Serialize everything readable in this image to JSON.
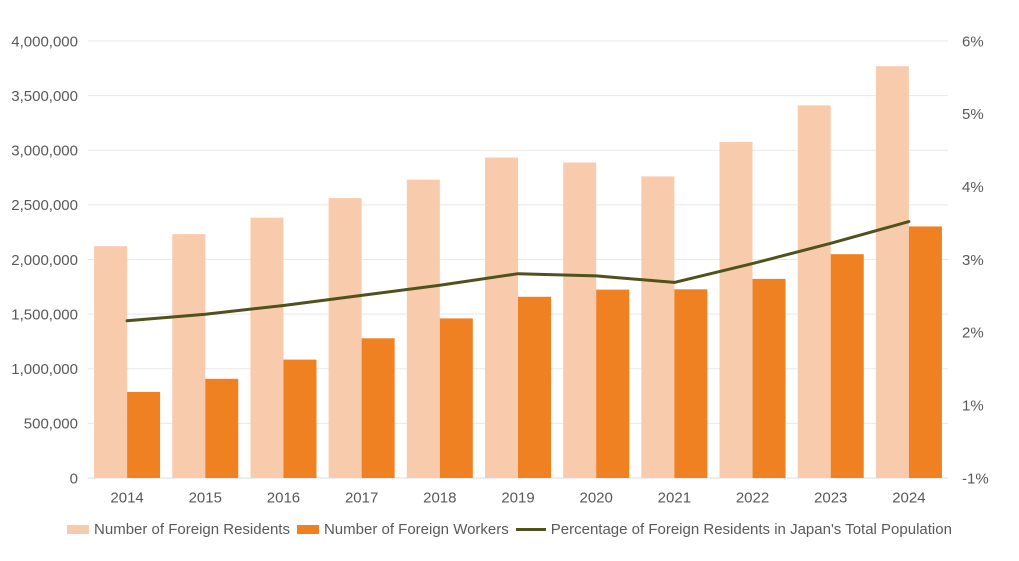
{
  "chart_data": {
    "type": "combo",
    "title": "",
    "categories": [
      "2014",
      "2015",
      "2016",
      "2017",
      "2018",
      "2019",
      "2020",
      "2021",
      "2022",
      "2023",
      "2024"
    ],
    "series": [
      {
        "name": "Number of Foreign Residents",
        "chart_type": "bar",
        "axis": "left",
        "color": "#F8CBAD",
        "values": [
          2121831,
          2232189,
          2382822,
          2561848,
          2731093,
          2933137,
          2887116,
          2760635,
          3075213,
          3410992,
          3768977
        ]
      },
      {
        "name": "Number of Foreign Workers",
        "chart_type": "bar",
        "axis": "left",
        "color": "#EF8122",
        "values": [
          787627,
          907896,
          1083769,
          1278670,
          1460463,
          1658804,
          1724328,
          1727221,
          1822725,
          2048675,
          2302587
        ]
      },
      {
        "name": "Percentage of Foreign Residents in Japan's Total Population",
        "chart_type": "line",
        "axis": "right",
        "color": "#4F521B",
        "values": [
          1.67,
          1.76,
          1.88,
          2.02,
          2.16,
          2.32,
          2.29,
          2.2,
          2.46,
          2.74,
          3.04
        ]
      }
    ],
    "left_axis": {
      "min": 0,
      "max": 4000000,
      "tick_labels": [
        "4,000,000",
        "3,500,000",
        "3,000,000",
        "2,500,000",
        "2,000,000",
        "1,500,000",
        "1,000,000",
        "500,000",
        "0"
      ]
    },
    "right_axis": {
      "tick_labels": [
        "6%",
        "5%",
        "4%",
        "3%",
        "2%",
        "1%",
        "-1%"
      ]
    },
    "x_axis": {
      "tick_labels": [
        "2014",
        "2015",
        "2016",
        "2017",
        "2018",
        "2019",
        "2020",
        "2021",
        "2022",
        "2023",
        "2024"
      ]
    },
    "legend": {
      "position": "bottom"
    },
    "grid": true,
    "colors": {
      "background": "#FFFFFF",
      "grid": "#E8E8E8",
      "axis_line": "#DCDCDC",
      "text": "#595959"
    }
  }
}
